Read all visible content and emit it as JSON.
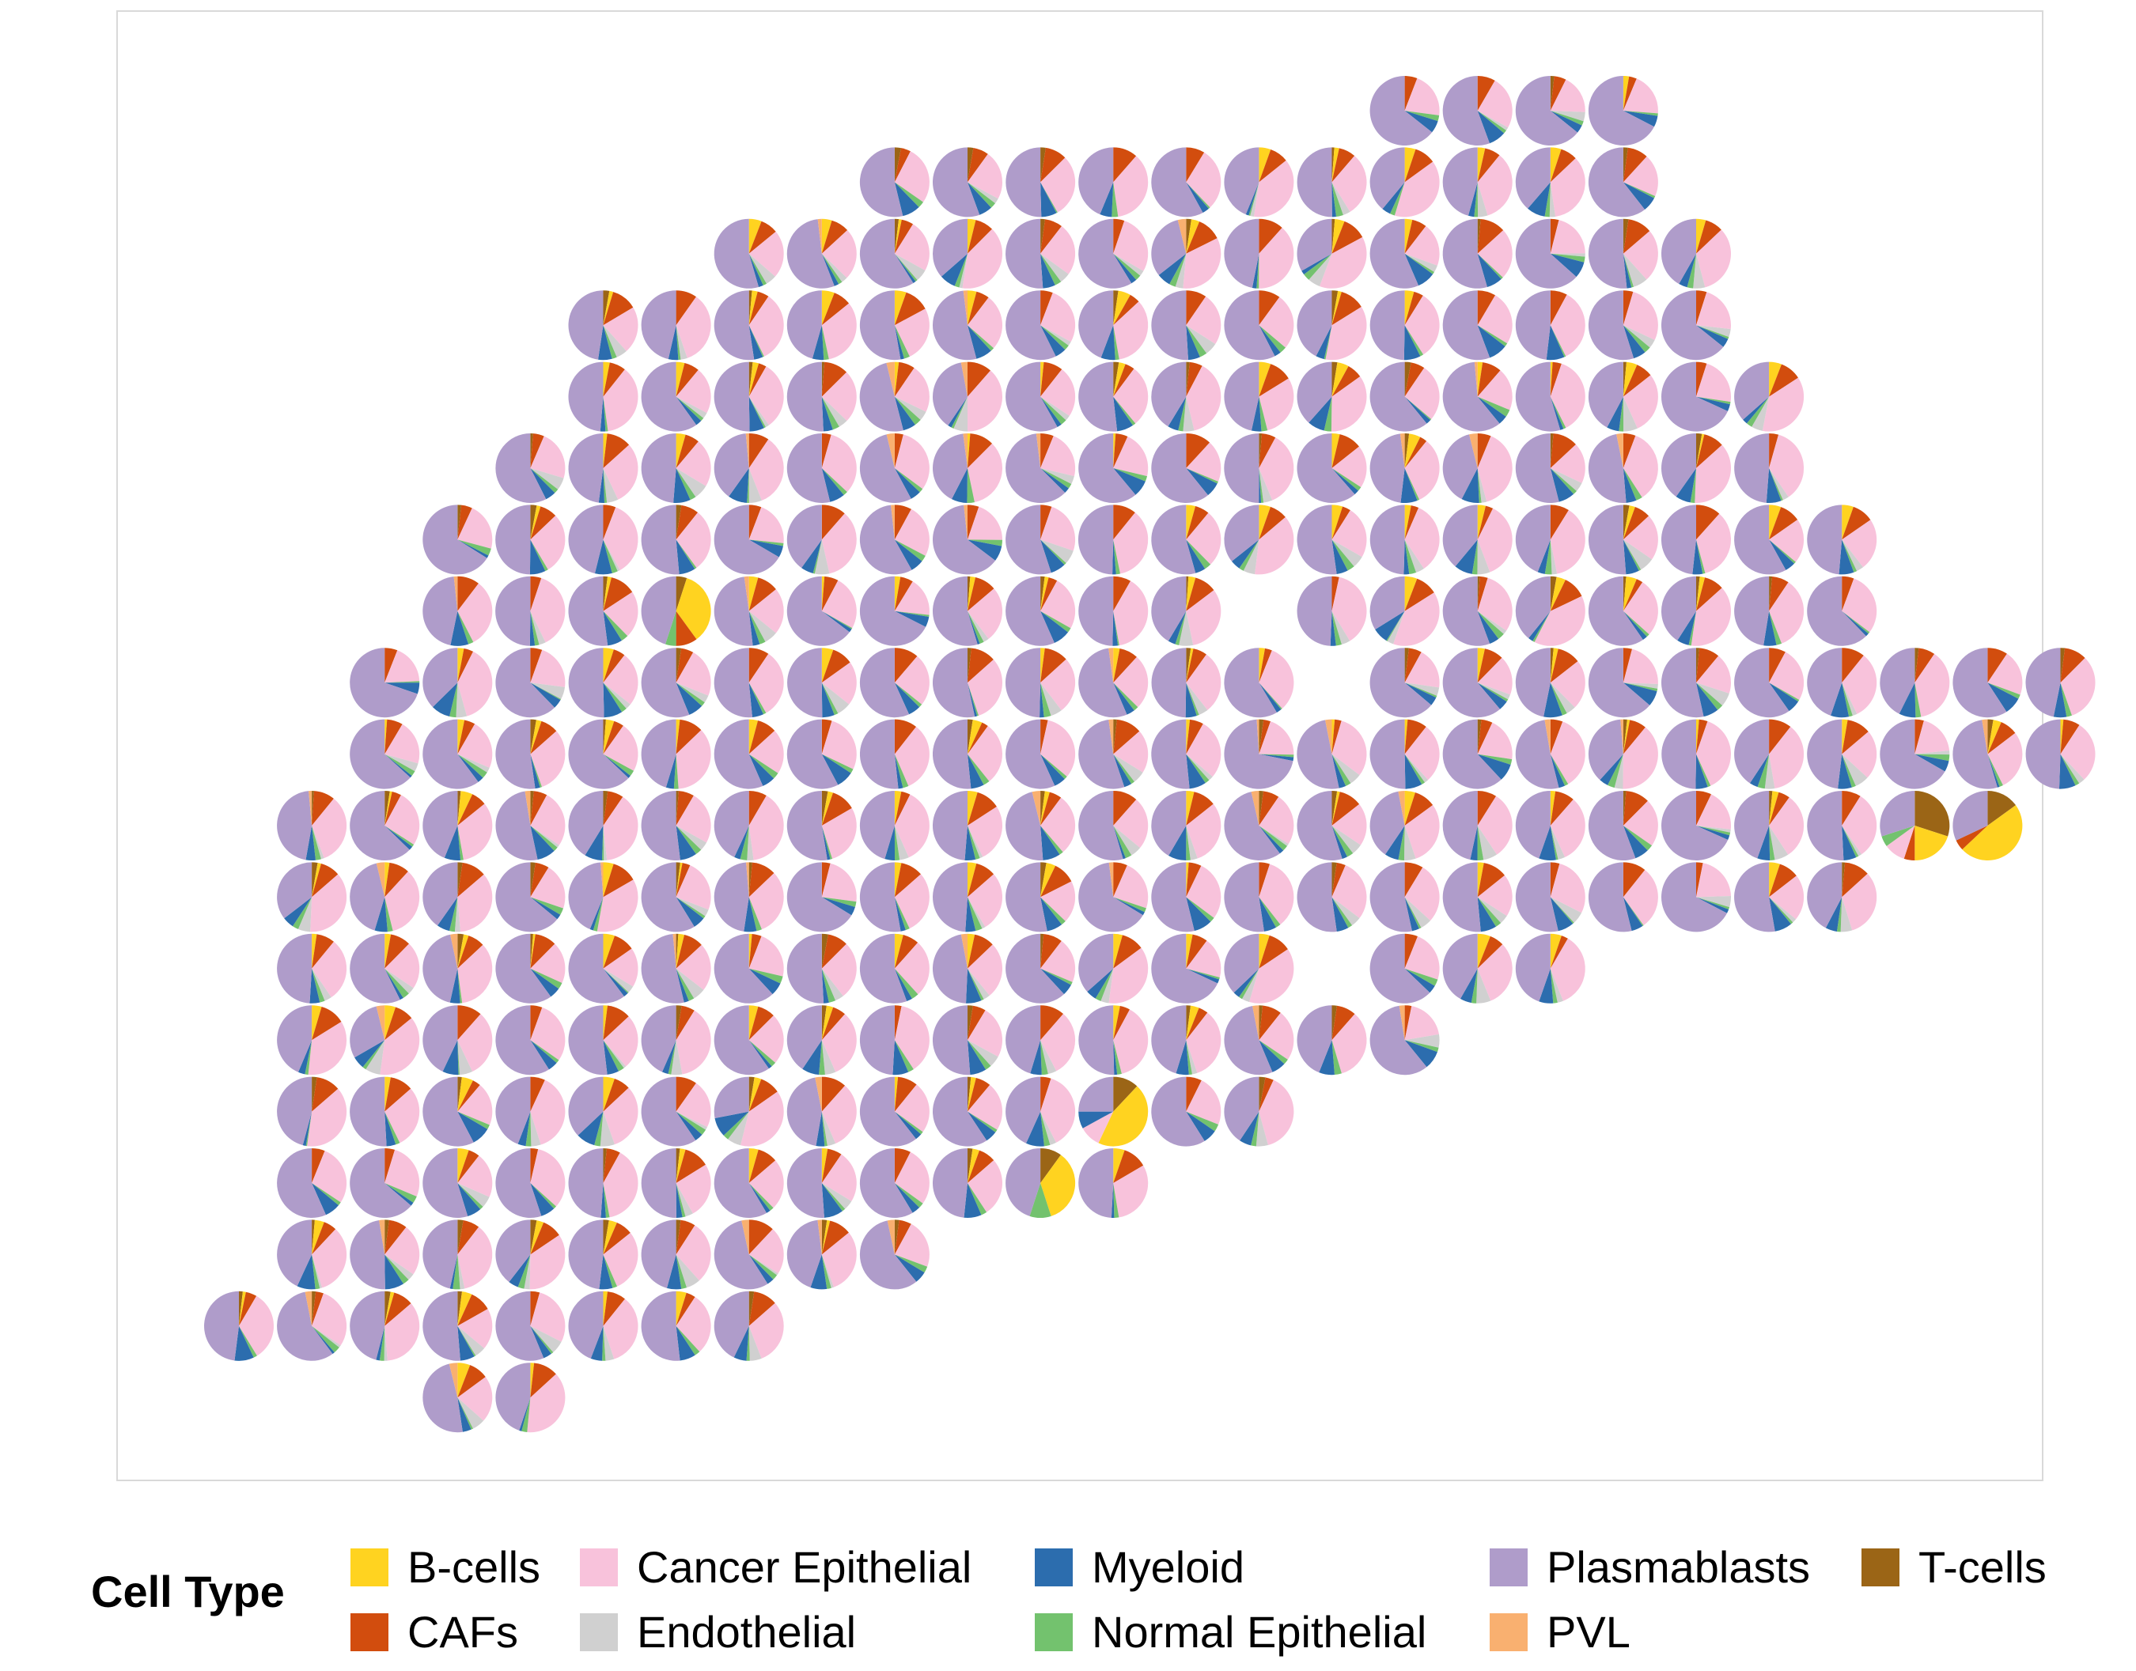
{
  "chart_data": {
    "type": "scatter-pie",
    "legend": {
      "title": "Cell Type",
      "entries": [
        {
          "name": "B-cells",
          "color": "#FFD320"
        },
        {
          "name": "CAFs",
          "color": "#D24D0E"
        },
        {
          "name": "Cancer Epithelial",
          "color": "#F8C2DB"
        },
        {
          "name": "Endothelial",
          "color": "#D0D0D0"
        },
        {
          "name": "Myeloid",
          "color": "#2C6DAE"
        },
        {
          "name": "Normal Epithelial",
          "color": "#73C26E"
        },
        {
          "name": "Plasmablasts",
          "color": "#AF9CCA"
        },
        {
          "name": "PVL",
          "color": "#F9B070"
        },
        {
          "name": "T-cells",
          "color": "#9B6516"
        }
      ]
    },
    "grid": false,
    "pie_segment_order": [
      "T-cells",
      "B-cells",
      "CAFs",
      "Cancer Epithelial",
      "Endothelial",
      "Normal Epithelial",
      "Myeloid",
      "Plasmablasts",
      "PVL"
    ],
    "spots": [
      {
        "row": 0,
        "cols": [
          16,
          17,
          18,
          19
        ],
        "typical_composition": {
          "Plasmablasts": 0.52,
          "Cancer Epithelial": 0.3,
          "CAFs": 0.06,
          "Myeloid": 0.05,
          "B-cells": 0.03,
          "Endothelial": 0.02,
          "Normal Epithelial": 0.02
        }
      },
      {
        "row": 1,
        "cols": [
          9,
          10,
          11,
          12,
          13,
          14,
          15,
          16,
          17,
          18,
          19
        ]
      },
      {
        "row": 2,
        "cols": [
          7,
          8,
          9,
          10,
          11,
          12,
          13,
          14,
          15,
          16,
          17,
          18,
          19,
          20
        ]
      },
      {
        "row": 3,
        "cols": [
          5,
          6,
          7,
          8,
          9,
          10,
          11,
          12,
          13,
          14,
          15,
          16,
          17,
          18,
          19,
          20
        ]
      },
      {
        "row": 4,
        "cols": [
          5,
          6,
          7,
          8,
          9,
          10,
          11,
          12,
          13,
          14,
          15,
          16,
          17,
          18,
          19,
          20,
          21
        ]
      },
      {
        "row": 5,
        "cols": [
          4,
          5,
          6,
          7,
          8,
          9,
          10,
          11,
          12,
          13,
          14,
          15,
          16,
          17,
          18,
          19,
          20,
          21
        ]
      },
      {
        "row": 6,
        "cols": [
          3,
          4,
          5,
          6,
          7,
          8,
          9,
          10,
          11,
          12,
          13,
          14,
          15,
          16,
          17,
          18,
          19,
          20,
          21,
          22
        ]
      },
      {
        "row": 7,
        "cols": [
          3,
          4,
          5,
          6,
          7,
          8,
          9,
          10,
          11,
          12,
          13,
          15,
          16,
          17,
          18,
          19,
          20,
          21,
          22
        ]
      },
      {
        "row": 8,
        "cols": [
          2,
          3,
          4,
          5,
          6,
          7,
          8,
          9,
          10,
          11,
          12,
          13,
          14,
          16,
          17,
          18,
          19,
          20,
          21,
          22,
          23,
          24,
          25
        ]
      },
      {
        "row": 9,
        "cols": [
          2,
          3,
          4,
          5,
          6,
          7,
          8,
          9,
          10,
          11,
          12,
          13,
          14,
          15,
          16,
          17,
          18,
          19,
          20,
          21,
          22,
          23,
          24,
          25
        ]
      },
      {
        "row": 10,
        "cols": [
          1,
          2,
          3,
          4,
          5,
          6,
          7,
          8,
          9,
          10,
          11,
          12,
          13,
          14,
          15,
          16,
          17,
          18,
          19,
          20,
          21,
          22,
          23,
          24
        ]
      },
      {
        "row": 11,
        "cols": [
          1,
          2,
          3,
          4,
          5,
          6,
          7,
          8,
          9,
          10,
          11,
          12,
          13,
          14,
          15,
          16,
          17,
          18,
          19,
          20,
          21,
          22
        ]
      },
      {
        "row": 12,
        "cols": [
          1,
          2,
          3,
          4,
          5,
          6,
          7,
          8,
          9,
          10,
          11,
          12,
          13,
          14,
          16,
          17,
          18
        ]
      },
      {
        "row": 13,
        "cols": [
          1,
          2,
          3,
          4,
          5,
          6,
          7,
          8,
          9,
          10,
          11,
          12,
          13,
          14,
          15,
          16
        ]
      },
      {
        "row": 14,
        "cols": [
          1,
          2,
          3,
          4,
          5,
          6,
          7,
          8,
          9,
          10,
          11,
          12,
          13,
          14
        ]
      },
      {
        "row": 15,
        "cols": [
          1,
          2,
          3,
          4,
          5,
          6,
          7,
          8,
          9,
          10,
          11,
          12
        ]
      },
      {
        "row": 16,
        "cols": [
          1,
          2,
          3,
          4,
          5,
          6,
          7,
          8,
          9
        ]
      },
      {
        "row": 17,
        "cols": [
          0,
          1,
          2,
          3,
          4,
          5,
          6,
          7
        ]
      },
      {
        "row": 18,
        "cols": [
          3,
          4
        ]
      }
    ],
    "notable_spots": [
      {
        "row": 10,
        "col": 23,
        "composition": {
          "T-cells": 0.3,
          "B-cells": 0.2,
          "Cancer Epithelial": 0.1,
          "Plasmablasts": 0.3,
          "Normal Epithelial": 0.05,
          "CAFs": 0.05
        }
      },
      {
        "row": 10,
        "col": 24,
        "composition": {
          "B-cells": 0.48,
          "T-cells": 0.15,
          "Plasmablasts": 0.32,
          "CAFs": 0.05
        }
      },
      {
        "row": 14,
        "col": 12,
        "composition": {
          "B-cells": 0.45,
          "T-cells": 0.12,
          "Plasmablasts": 0.25,
          "Cancer Epithelial": 0.1,
          "Myeloid": 0.08
        }
      },
      {
        "row": 15,
        "col": 11,
        "composition": {
          "B-cells": 0.35,
          "T-cells": 0.1,
          "Plasmablasts": 0.45,
          "Normal Epithelial": 0.1
        }
      },
      {
        "row": 7,
        "col": 6,
        "composition": {
          "B-cells": 0.35,
          "CAFs": 0.1,
          "Plasmablasts": 0.45,
          "Normal Epithelial": 0.05,
          "T-cells": 0.05
        }
      }
    ]
  }
}
